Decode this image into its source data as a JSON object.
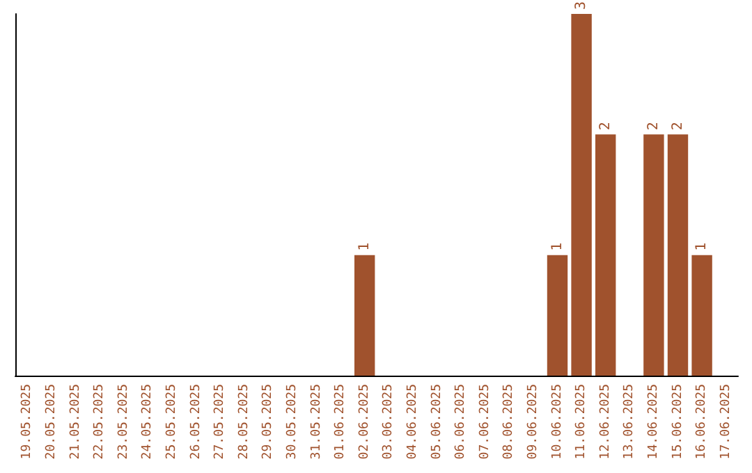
{
  "chart_data": {
    "type": "bar",
    "categories": [
      "19.05.2025",
      "20.05.2025",
      "21.05.2025",
      "22.05.2025",
      "23.05.2025",
      "24.05.2025",
      "25.05.2025",
      "26.05.2025",
      "27.05.2025",
      "28.05.2025",
      "29.05.2025",
      "30.05.2025",
      "31.05.2025",
      "01.06.2025",
      "02.06.2025",
      "03.06.2025",
      "04.06.2025",
      "05.06.2025",
      "06.06.2025",
      "07.06.2025",
      "08.06.2025",
      "09.06.2025",
      "10.06.2025",
      "11.06.2025",
      "12.06.2025",
      "13.06.2025",
      "14.06.2025",
      "15.06.2025",
      "16.06.2025",
      "17.06.2025"
    ],
    "values": [
      null,
      null,
      null,
      null,
      null,
      null,
      null,
      null,
      null,
      null,
      null,
      null,
      null,
      null,
      1,
      null,
      null,
      null,
      null,
      null,
      null,
      null,
      1,
      3,
      2,
      null,
      2,
      2,
      1,
      null
    ],
    "color": "#a0522d",
    "data_labels": true,
    "tick_labels": "x"
  }
}
